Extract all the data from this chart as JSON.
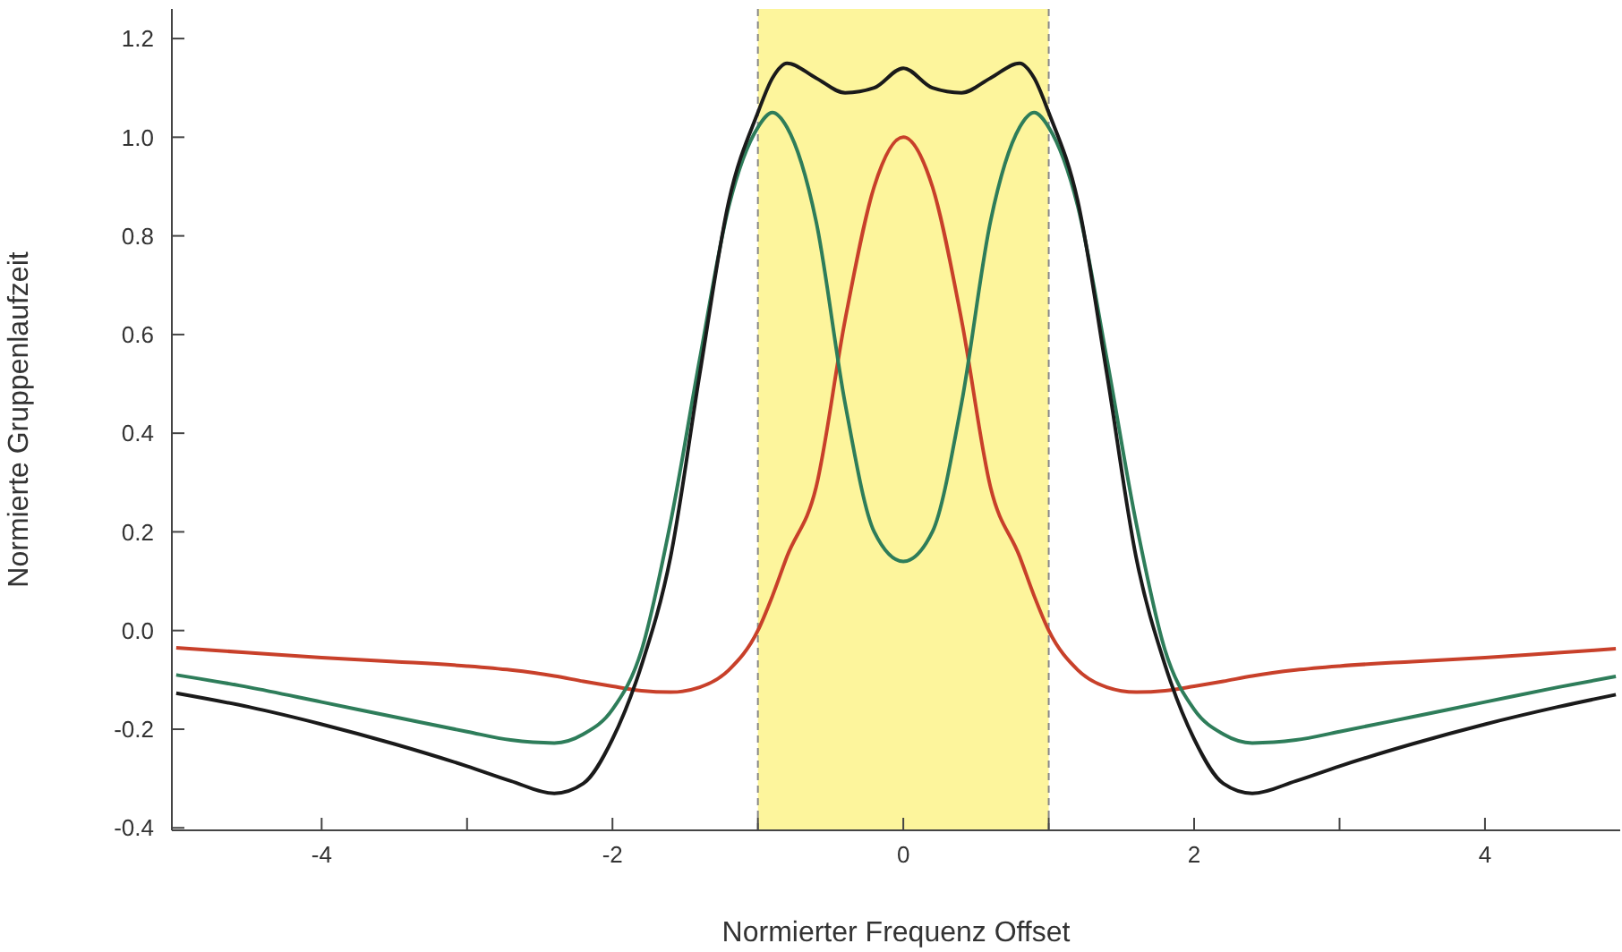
{
  "chart_data": {
    "type": "line",
    "xlabel": "Normierter Frequenz Offset",
    "ylabel": "Normierte Gruppenlaufzeit",
    "x": [
      -5,
      -4.5,
      -4,
      -3.5,
      -3,
      -2.7,
      -2.4,
      -2.2,
      -2,
      -1.8,
      -1.6,
      -1.4,
      -1.2,
      -1,
      -0.9,
      -0.8,
      -0.6,
      -0.4,
      -0.2,
      0,
      0.2,
      0.4,
      0.6,
      0.8,
      0.9,
      1,
      1.2,
      1.4,
      1.6,
      1.8,
      2,
      2.2,
      2.4,
      2.7,
      3,
      3.5,
      4,
      4.5,
      4.9
    ],
    "series": [
      {
        "color": "#c8402a",
        "values": [
          -0.035,
          -0.045,
          -0.055,
          -0.063,
          -0.072,
          -0.08,
          -0.092,
          -0.103,
          -0.113,
          -0.122,
          -0.125,
          -0.115,
          -0.08,
          0.0,
          0.07,
          0.15,
          0.29,
          0.63,
          0.9,
          1.0,
          0.9,
          0.63,
          0.29,
          0.15,
          0.07,
          0.0,
          -0.08,
          -0.115,
          -0.125,
          -0.122,
          -0.113,
          -0.103,
          -0.092,
          -0.08,
          -0.072,
          -0.063,
          -0.055,
          -0.045,
          -0.037
        ]
      },
      {
        "color": "#2e7d5a",
        "values": [
          -0.09,
          -0.115,
          -0.145,
          -0.175,
          -0.205,
          -0.222,
          -0.228,
          -0.21,
          -0.16,
          -0.04,
          0.22,
          0.55,
          0.86,
          1.02,
          1.05,
          1.02,
          0.83,
          0.46,
          0.2,
          0.14,
          0.2,
          0.46,
          0.83,
          1.02,
          1.05,
          1.02,
          0.86,
          0.55,
          0.22,
          -0.04,
          -0.16,
          -0.21,
          -0.228,
          -0.222,
          -0.205,
          -0.175,
          -0.145,
          -0.115,
          -0.093
        ]
      },
      {
        "color": "#1a1a1a",
        "values": [
          -0.127,
          -0.155,
          -0.19,
          -0.23,
          -0.275,
          -0.305,
          -0.33,
          -0.31,
          -0.22,
          -0.07,
          0.15,
          0.52,
          0.87,
          1.05,
          1.12,
          1.15,
          1.12,
          1.09,
          1.1,
          1.14,
          1.1,
          1.09,
          1.12,
          1.15,
          1.12,
          1.05,
          0.87,
          0.52,
          0.15,
          -0.07,
          -0.22,
          -0.31,
          -0.33,
          -0.305,
          -0.275,
          -0.23,
          -0.19,
          -0.155,
          -0.13
        ]
      }
    ],
    "xlim": [
      -5.03,
      4.93
    ],
    "xticks": [
      -4,
      {
        "value": -3,
        "label": null
      },
      -2,
      {
        "value": -1,
        "label": null
      },
      0,
      {
        "value": 1,
        "label": null
      },
      2,
      {
        "value": 3,
        "label": null
      },
      4
    ],
    "ylim": [
      -0.405,
      1.26
    ],
    "yticks": [
      -0.4,
      -0.2,
      {
        "value": 0,
        "label": "0.0"
      },
      0.2,
      0.4,
      0.6,
      0.8,
      {
        "value": 1,
        "label": "1.0"
      },
      1.2
    ],
    "bands": [
      {
        "axis": "x",
        "from": -1,
        "to": 1,
        "color": "#fdf59c"
      }
    ],
    "ref_lines": [
      {
        "axis": "x",
        "value": -1,
        "color": "#888888",
        "line_style": "dashed"
      },
      {
        "axis": "x",
        "value": 1,
        "color": "#888888",
        "line_style": "dashed"
      }
    ]
  }
}
